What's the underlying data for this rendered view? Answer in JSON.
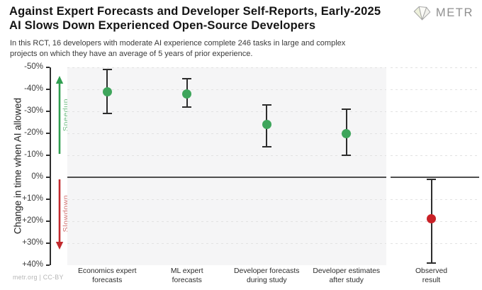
{
  "header": {
    "title_line1": "Against Expert Forecasts and Developer Self-Reports, Early-2025",
    "title_line2": "AI Slows Down Experienced Open-Source Developers",
    "subtitle_line1": "In this RCT, 16 developers with moderate AI experience complete 246 tasks in large and complex",
    "subtitle_line2": "projects on which they have an average of 5 years of prior experience.",
    "logo_text": "METR"
  },
  "footer": {
    "credit": "metr.org  |  CC-BY"
  },
  "chart_data": {
    "type": "scatter",
    "title": "Against Expert Forecasts and Developer Self-Reports, Early-2025 AI Slows Down Experienced Open-Source Developers",
    "subtitle": "In this RCT, 16 developers with moderate AI experience complete 246 tasks in large and complex projects on which they have an average of 5 years of prior experience.",
    "ylabel": "Change in time when AI allowed",
    "y_axis_inverted": true,
    "ylim": [
      -50,
      40
    ],
    "yticks": [
      -50,
      -40,
      -30,
      -20,
      -10,
      0,
      10,
      20,
      30,
      40
    ],
    "ytick_labels": [
      "-50%",
      "-40%",
      "-30%",
      "-20%",
      "-10%",
      "0%",
      "+10%",
      "+20%",
      "+30%",
      "+40%"
    ],
    "grid": "dashed horizontal, zero line solid",
    "legend": "none",
    "annotations": {
      "speedup_label": "Speedup",
      "slowdown_label": "Slowdown"
    },
    "colors": {
      "forecast_green": "#3ea55b",
      "observed_red": "#c92127",
      "speedup_arrow": "#2f9e50",
      "slowdown_arrow": "#c22a2e"
    },
    "points": [
      {
        "category": "Economics expert forecasts",
        "category_lines": [
          "Economics expert",
          "forecasts"
        ],
        "value": -39,
        "ci": [
          -49,
          -29
        ],
        "color": "#3ea55b",
        "panel": "main"
      },
      {
        "category": "ML expert forecasts",
        "category_lines": [
          "ML expert",
          "forecasts"
        ],
        "value": -38,
        "ci": [
          -45,
          -32
        ],
        "color": "#3ea55b",
        "panel": "main"
      },
      {
        "category": "Developer forecasts during study",
        "category_lines": [
          "Developer forecasts",
          "during study"
        ],
        "value": -24,
        "ci": [
          -33,
          -14
        ],
        "color": "#3ea55b",
        "panel": "main"
      },
      {
        "category": "Developer estimates after study",
        "category_lines": [
          "Developer estimates",
          "after study"
        ],
        "value": -20,
        "ci": [
          -31,
          -10
        ],
        "color": "#3ea55b",
        "panel": "main"
      },
      {
        "category": "Observed result",
        "category_lines": [
          "Observed",
          "result"
        ],
        "value": 19,
        "ci": [
          1,
          39
        ],
        "color": "#c92127",
        "panel": "right"
      }
    ]
  }
}
